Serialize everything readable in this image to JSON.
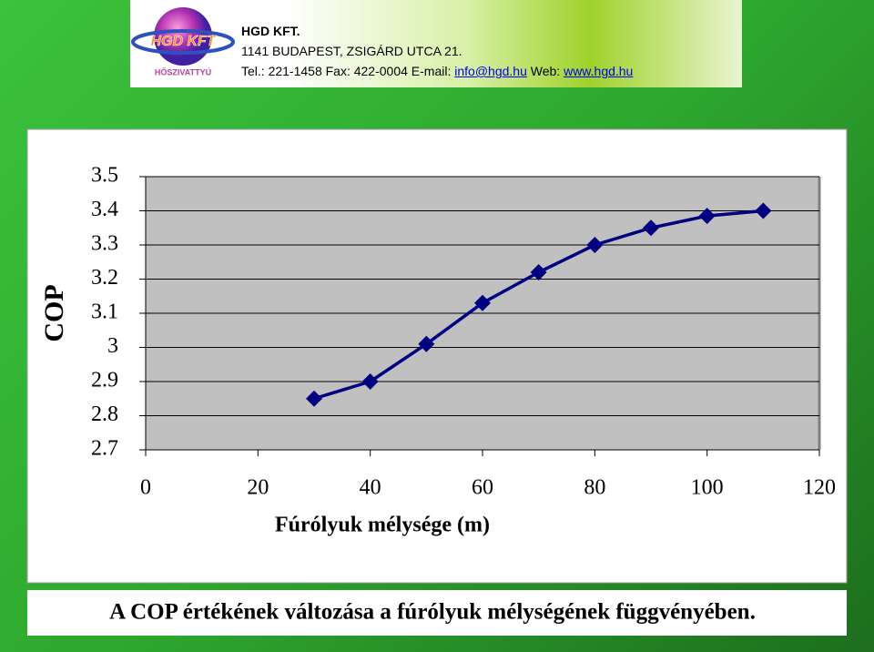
{
  "header": {
    "logo_text": "HGD KFT",
    "logo_subtext": "HŐSZIVATTYÚ",
    "company": "HGD KFT.",
    "address": "1141 BUDAPEST, ZSIGÁRD UTCA 21.",
    "contact": "Tel.: 221-1458 Fax: 422-0004 E-mail:",
    "email": "info@hgd.hu",
    "web_label": "Web:",
    "web": "www.hgd.hu"
  },
  "chart_data": {
    "type": "line",
    "x_label": "Fúrólyuk  mélysége (m)",
    "y_label": "COP",
    "caption": "A COP értékének változása a fúrólyuk mélységének függvényében.",
    "x": [
      30,
      40,
      50,
      60,
      70,
      80,
      90,
      100,
      110
    ],
    "values": [
      2.85,
      2.9,
      3.01,
      3.13,
      3.22,
      3.3,
      3.35,
      3.385,
      3.4
    ],
    "color": "#000080",
    "marker": "diamond",
    "xlim": [
      0,
      120
    ],
    "xticks": [
      0,
      20,
      40,
      60,
      80,
      100,
      120
    ],
    "ylim": [
      2.7,
      3.5
    ],
    "yticks": [
      2.7,
      2.8,
      2.9,
      3,
      3.1,
      3.2,
      3.3,
      3.4,
      3.5
    ],
    "grid": true
  }
}
